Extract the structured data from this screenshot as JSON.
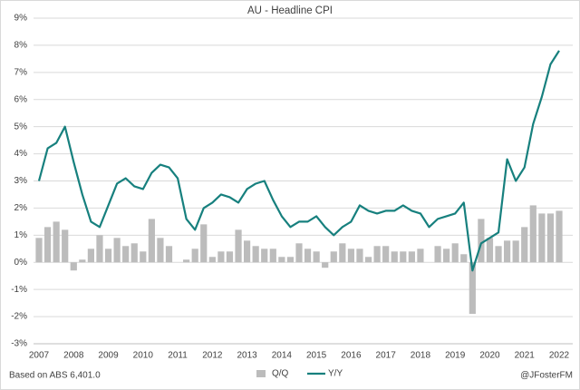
{
  "chart_data": {
    "type": "bar_line",
    "title": "AU - Headline CPI",
    "source": "Based on ABS 6,401.0",
    "credit": "@JFosterFM",
    "categories": [
      "2007",
      null,
      null,
      null,
      "2008",
      null,
      null,
      null,
      "2009",
      null,
      null,
      null,
      "2010",
      null,
      null,
      null,
      "2011",
      null,
      null,
      null,
      "2012",
      null,
      null,
      null,
      "2013",
      null,
      null,
      null,
      "2014",
      null,
      null,
      null,
      "2015",
      null,
      null,
      null,
      "2016",
      null,
      null,
      null,
      "2017",
      null,
      null,
      null,
      "2018",
      null,
      null,
      null,
      "2019",
      null,
      null,
      null,
      "2020",
      null,
      null,
      null,
      "2021",
      null,
      null,
      null,
      "2022"
    ],
    "series": [
      {
        "name": "Q/Q",
        "type": "bar",
        "color": "#bcbcbc",
        "values": [
          0.9,
          1.3,
          1.5,
          1.2,
          -0.3,
          0.1,
          0.5,
          1.0,
          0.5,
          0.9,
          0.6,
          0.7,
          0.4,
          1.6,
          0.9,
          0.6,
          0.0,
          0.1,
          0.5,
          1.4,
          0.2,
          0.4,
          0.4,
          1.2,
          0.8,
          0.6,
          0.5,
          0.5,
          0.2,
          0.2,
          0.7,
          0.5,
          0.4,
          -0.2,
          0.4,
          0.7,
          0.5,
          0.5,
          0.2,
          0.6,
          0.6,
          0.4,
          0.4,
          0.4,
          0.5,
          0.0,
          0.6,
          0.5,
          0.7,
          0.3,
          -1.9,
          1.6,
          0.9,
          0.6,
          0.8,
          0.8,
          1.3,
          2.1,
          1.8,
          1.8,
          1.9
        ]
      },
      {
        "name": "Y/Y",
        "type": "line",
        "color": "#17807e",
        "values": [
          3.0,
          4.2,
          4.4,
          5.0,
          3.7,
          2.5,
          1.5,
          1.3,
          2.1,
          2.9,
          3.1,
          2.8,
          2.7,
          3.3,
          3.6,
          3.5,
          3.1,
          1.6,
          1.2,
          2.0,
          2.2,
          2.5,
          2.4,
          2.2,
          2.7,
          2.9,
          3.0,
          2.3,
          1.7,
          1.3,
          1.5,
          1.5,
          1.7,
          1.3,
          1.0,
          1.3,
          1.5,
          2.1,
          1.9,
          1.8,
          1.9,
          1.9,
          2.1,
          1.9,
          1.8,
          1.3,
          1.6,
          1.7,
          1.8,
          2.2,
          -0.3,
          0.7,
          0.9,
          1.1,
          3.8,
          3.0,
          3.5,
          5.1,
          6.1,
          7.3,
          7.8
        ]
      }
    ],
    "ylim": [
      -3,
      9
    ],
    "yticks": [
      {
        "value": -3,
        "label": "-3%"
      },
      {
        "value": -2,
        "label": "-2%"
      },
      {
        "value": -1,
        "label": "-1%"
      },
      {
        "value": 0,
        "label": "0%"
      },
      {
        "value": 1,
        "label": "1%"
      },
      {
        "value": 2,
        "label": "2%"
      },
      {
        "value": 3,
        "label": "3%"
      },
      {
        "value": 4,
        "label": "4%"
      },
      {
        "value": 5,
        "label": "5%"
      },
      {
        "value": 6,
        "label": "6%"
      },
      {
        "value": 7,
        "label": "7%"
      },
      {
        "value": 8,
        "label": "8%"
      },
      {
        "value": 9,
        "label": "9%"
      }
    ],
    "grid": true,
    "legend": "bottom"
  }
}
